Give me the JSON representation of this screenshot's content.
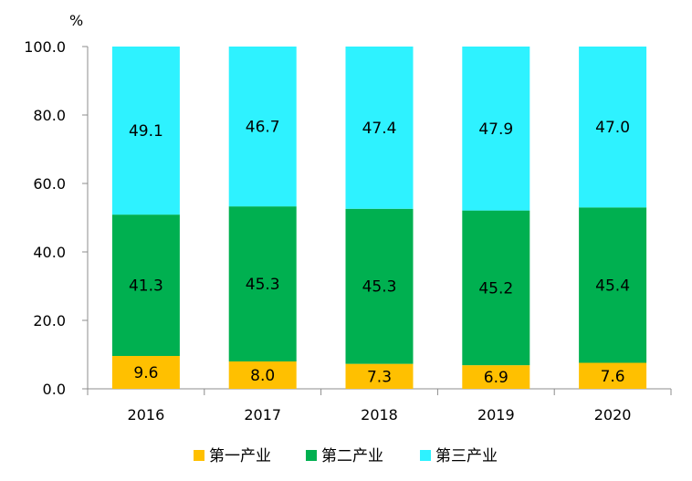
{
  "chart_data": {
    "type": "bar",
    "stacked": true,
    "unit_label": "%",
    "categories": [
      "2016",
      "2017",
      "2018",
      "2019",
      "2020"
    ],
    "series": [
      {
        "name": "第一产业",
        "color": "#FFC000",
        "values": [
          9.6,
          8.0,
          7.3,
          6.9,
          7.6
        ]
      },
      {
        "name": "第二产业",
        "color": "#00B050",
        "values": [
          41.3,
          45.3,
          45.3,
          45.2,
          45.4
        ]
      },
      {
        "name": "第三产业",
        "color": "#2EF2FF",
        "values": [
          49.1,
          46.7,
          47.4,
          47.9,
          47.0
        ]
      }
    ],
    "ylim": [
      0,
      100
    ],
    "yticks": [
      "0.0",
      "20.0",
      "40.0",
      "60.0",
      "80.0",
      "100.0"
    ],
    "grid": false,
    "legend_position": "bottom"
  }
}
